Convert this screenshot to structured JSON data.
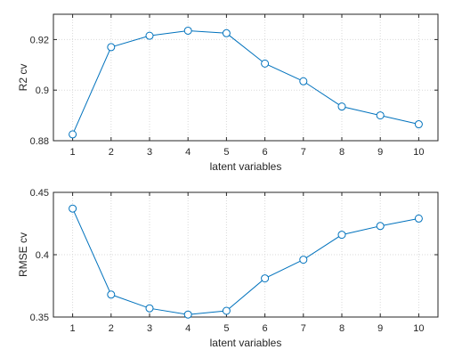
{
  "chart_data": [
    {
      "type": "line",
      "x": [
        1,
        2,
        3,
        4,
        5,
        6,
        7,
        8,
        9,
        10
      ],
      "values": [
        0.8825,
        0.917,
        0.9215,
        0.9235,
        0.9225,
        0.9105,
        0.9035,
        0.8935,
        0.89,
        0.8865
      ],
      "xlabel": "latent variables",
      "ylabel": "R2 cv",
      "xlim": [
        0.5,
        10.5
      ],
      "ylim": [
        0.88,
        0.93
      ],
      "xticks": [
        1,
        2,
        3,
        4,
        5,
        6,
        7,
        8,
        9,
        10
      ],
      "yticks": [
        0.88,
        0.9,
        0.92
      ],
      "ytick_labels": [
        "0.88",
        "0.9",
        "0.92"
      ],
      "grid": true,
      "color": "#0072bd"
    },
    {
      "type": "line",
      "x": [
        1,
        2,
        3,
        4,
        5,
        6,
        7,
        8,
        9,
        10
      ],
      "values": [
        0.437,
        0.368,
        0.357,
        0.352,
        0.355,
        0.381,
        0.396,
        0.416,
        0.423,
        0.429
      ],
      "xlabel": "latent variables",
      "ylabel": "RMSE cv",
      "xlim": [
        0.5,
        10.5
      ],
      "ylim": [
        0.35,
        0.45
      ],
      "xticks": [
        1,
        2,
        3,
        4,
        5,
        6,
        7,
        8,
        9,
        10
      ],
      "yticks": [
        0.35,
        0.4,
        0.45
      ],
      "ytick_labels": [
        "0.35",
        "0.4",
        "0.45"
      ],
      "grid": true,
      "color": "#0072bd"
    }
  ]
}
